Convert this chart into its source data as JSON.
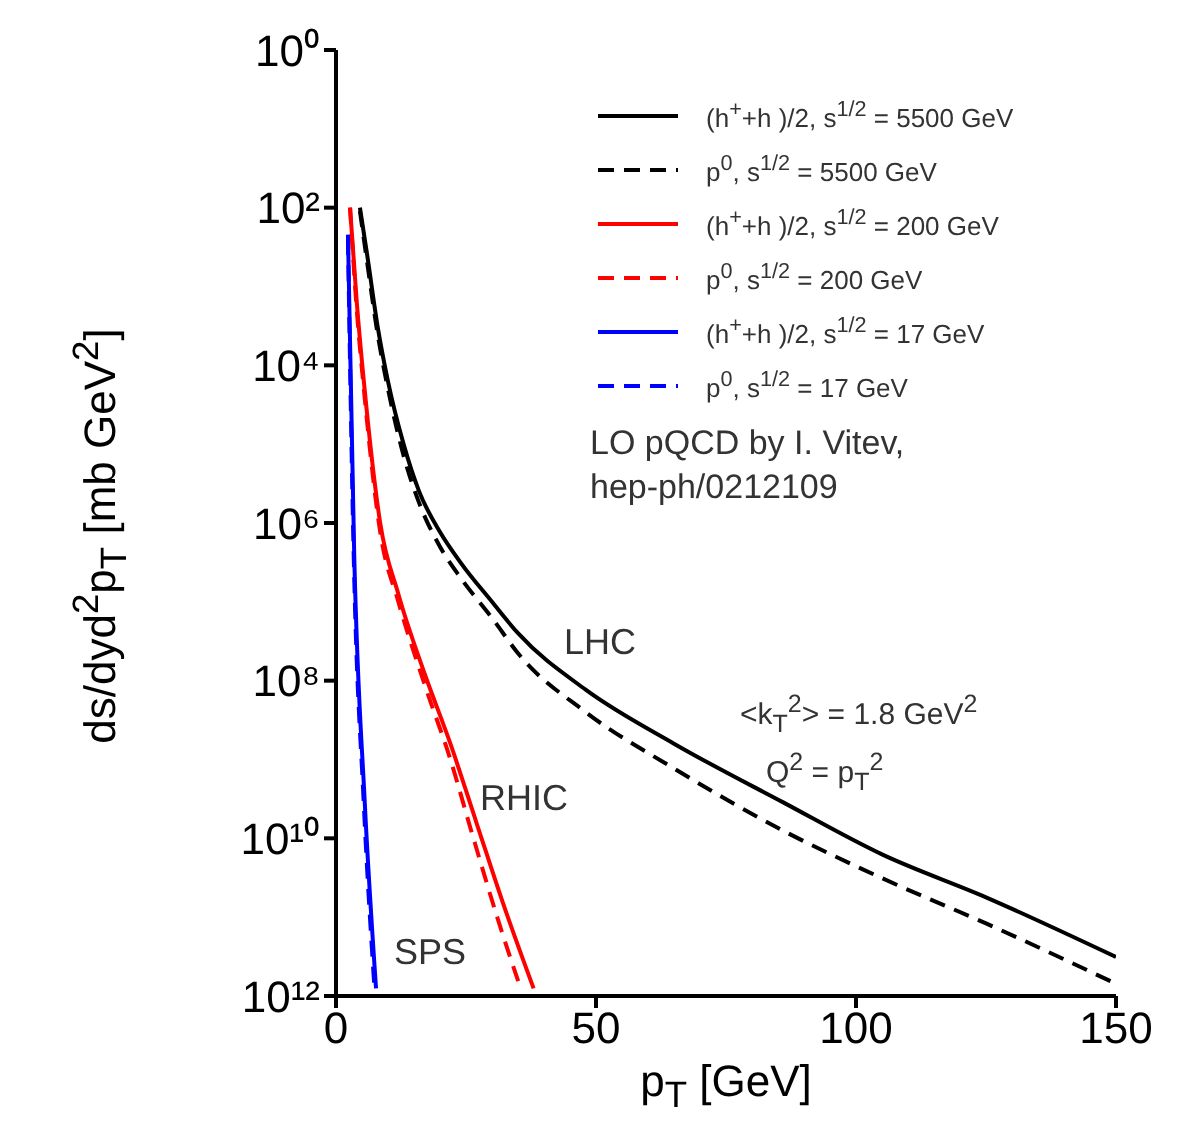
{
  "chart_data": {
    "type": "line",
    "log": "y",
    "xlabel": "p$_{T}$ [GeV]",
    "ylabel": "ds/dyd$^{2}$p$_{T}$ [mb GeV$^{2}$]",
    "xlim": [
      0,
      150
    ],
    "xticks": [
      0,
      50,
      100,
      150
    ],
    "ylim": [
      1000000000000.0,
      1
    ],
    "yticks": [
      {
        "value": 1,
        "label": "10⁰"
      },
      {
        "value": 100.0,
        "label": "10²"
      },
      {
        "value": 10000.0,
        "label": "10⁴"
      },
      {
        "value": 1000000.0,
        "label": "10⁶"
      },
      {
        "value": 100000000.0,
        "label": "10⁸"
      },
      {
        "value": 10000000000.0,
        "label": "10¹⁰"
      },
      {
        "value": 1000000000000.0,
        "label": "10¹²"
      }
    ],
    "legend": "top right",
    "grid": false,
    "series": [
      {
        "name": "(h$^{+}$+h )/2, s$^{1/2}$ = 5500 GeV",
        "color": "#000000",
        "line_style": "solid",
        "x": [
          4.6,
          6,
          8,
          10,
          13,
          16,
          20,
          24,
          30,
          35,
          48,
          65,
          86,
          105,
          125,
          150
        ],
        "values": [
          100.0,
          400.0,
          3200.0,
          16000.0,
          100000.0,
          400000.0,
          1300000.0,
          3200000.0,
          10000000.0,
          25000000.0,
          130000000.0,
          630000000.0,
          3500000000.0,
          16000000000.0,
          56000000000.0,
          320000000000.0
        ]
      },
      {
        "name": "p$^{0}$, s$^{1/2}$ = 5500 GeV",
        "color": "#000000",
        "line_style": "dashed",
        "x": [
          4.6,
          6,
          8,
          10,
          13,
          16,
          20,
          24,
          30,
          35,
          48,
          65,
          86,
          105,
          125,
          150
        ],
        "values": [
          110.0,
          500.0,
          4000.0,
          20000.0,
          140000.0,
          560000.0,
          2000000.0,
          5000000.0,
          16000000.0,
          45000000.0,
          250000000.0,
          1300000000.0,
          8000000000.0,
          32000000000.0,
          120000000000.0,
          700000000000.0
        ]
      },
      {
        "name": "(h$^{+}$+h )/2, s$^{1/2}$ = 200 GeV",
        "color": "#ff0000",
        "line_style": "solid",
        "x": [
          2.7,
          4,
          5.5,
          8.5,
          12,
          17,
          22,
          27,
          32,
          38
        ],
        "values": [
          100.0,
          1600.0,
          20000.0,
          1000000.0,
          8000000.0,
          80000000.0,
          630000000.0,
          6300000000.0,
          63000000000.0,
          800000000000.0
        ]
      },
      {
        "name": "p$^{0}$, s$^{1/2}$ = 200 GeV",
        "color": "#ff0000",
        "line_style": "dashed",
        "x": [
          2.7,
          4,
          5.5,
          8.5,
          12,
          17,
          22,
          26,
          31,
          35.5
        ],
        "values": [
          100.0,
          2000.0,
          25000.0,
          1300000.0,
          10000000.0,
          110000000.0,
          1000000000.0,
          8000000000.0,
          100000000000.0,
          800000000000.0
        ]
      },
      {
        "name": "(h$^{+}$+h )/2, s$^{1/2}$ = 17 GeV",
        "color": "#0000ff",
        "line_style": "solid",
        "x": [
          2.3,
          3.5,
          5.5,
          7.7
        ],
        "values": [
          220.0,
          2500000.0,
          3200000000.0,
          800000000000.0
        ]
      },
      {
        "name": "p$^{0}$, s$^{1/2}$ = 17 GeV",
        "color": "#0000ff",
        "line_style": "dashed",
        "x": [
          2.3,
          3.4,
          5.3,
          7.4
        ],
        "values": [
          250.0,
          2500000.0,
          3200000000.0,
          800000000000.0
        ]
      }
    ],
    "annotations": [
      "LO pQCD by I. Vitev, hep-ph/0212109",
      "<k$_{T}$$^{2}$> = 1.8 GeV$^{2}$",
      "Q$^{2}$ = p$_{T}$$^{2}$",
      "LHC",
      "RHIC",
      "SPS"
    ]
  }
}
